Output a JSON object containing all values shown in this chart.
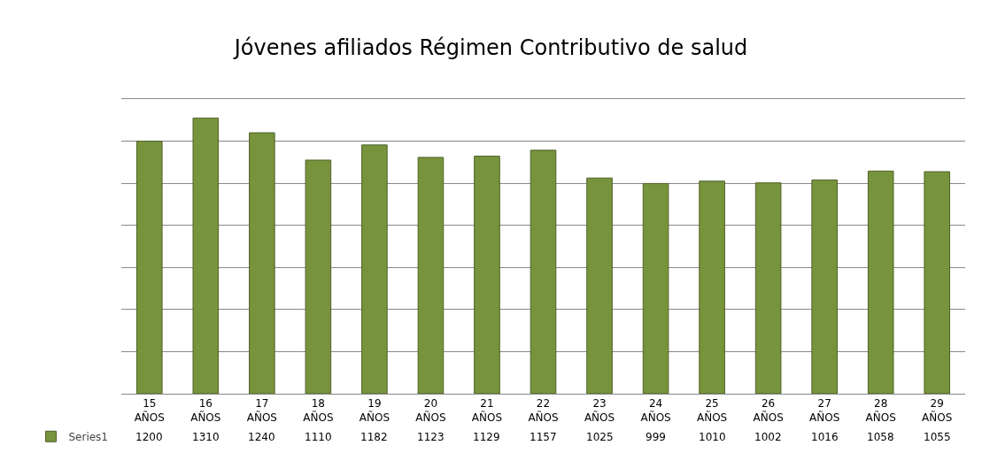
{
  "chart_data": {
    "type": "bar",
    "title": "Jóvenes afiliados Régimen Contributivo de salud",
    "categories": [
      "15 AÑOS",
      "16 AÑOS",
      "17 AÑOS",
      "18 AÑOS",
      "19 AÑOS",
      "20 AÑOS",
      "21 AÑOS",
      "22 AÑOS",
      "23 AÑOS",
      "24 AÑOS",
      "25 AÑOS",
      "26 AÑOS",
      "27 AÑOS",
      "28 AÑOS",
      "29 AÑOS"
    ],
    "series": [
      {
        "name": "Series1",
        "color": "#77933c",
        "values": [
          1200,
          1310,
          1240,
          1110,
          1182,
          1123,
          1129,
          1157,
          1025,
          999,
          1010,
          1002,
          1016,
          1058,
          1055
        ]
      }
    ],
    "ylim": [
      0,
      1400
    ],
    "yticks": [
      {
        "value": 0,
        "label": null
      },
      {
        "value": 200,
        "label": null
      },
      {
        "value": 400,
        "label": null
      },
      {
        "value": 600,
        "label": null
      },
      {
        "value": 800,
        "label": null
      },
      {
        "value": 1000,
        "label": null
      },
      {
        "value": 1200,
        "label": null
      },
      {
        "value": 1400,
        "label": null
      }
    ],
    "grid": "y",
    "data_labels": true,
    "legend": "bottom left"
  }
}
